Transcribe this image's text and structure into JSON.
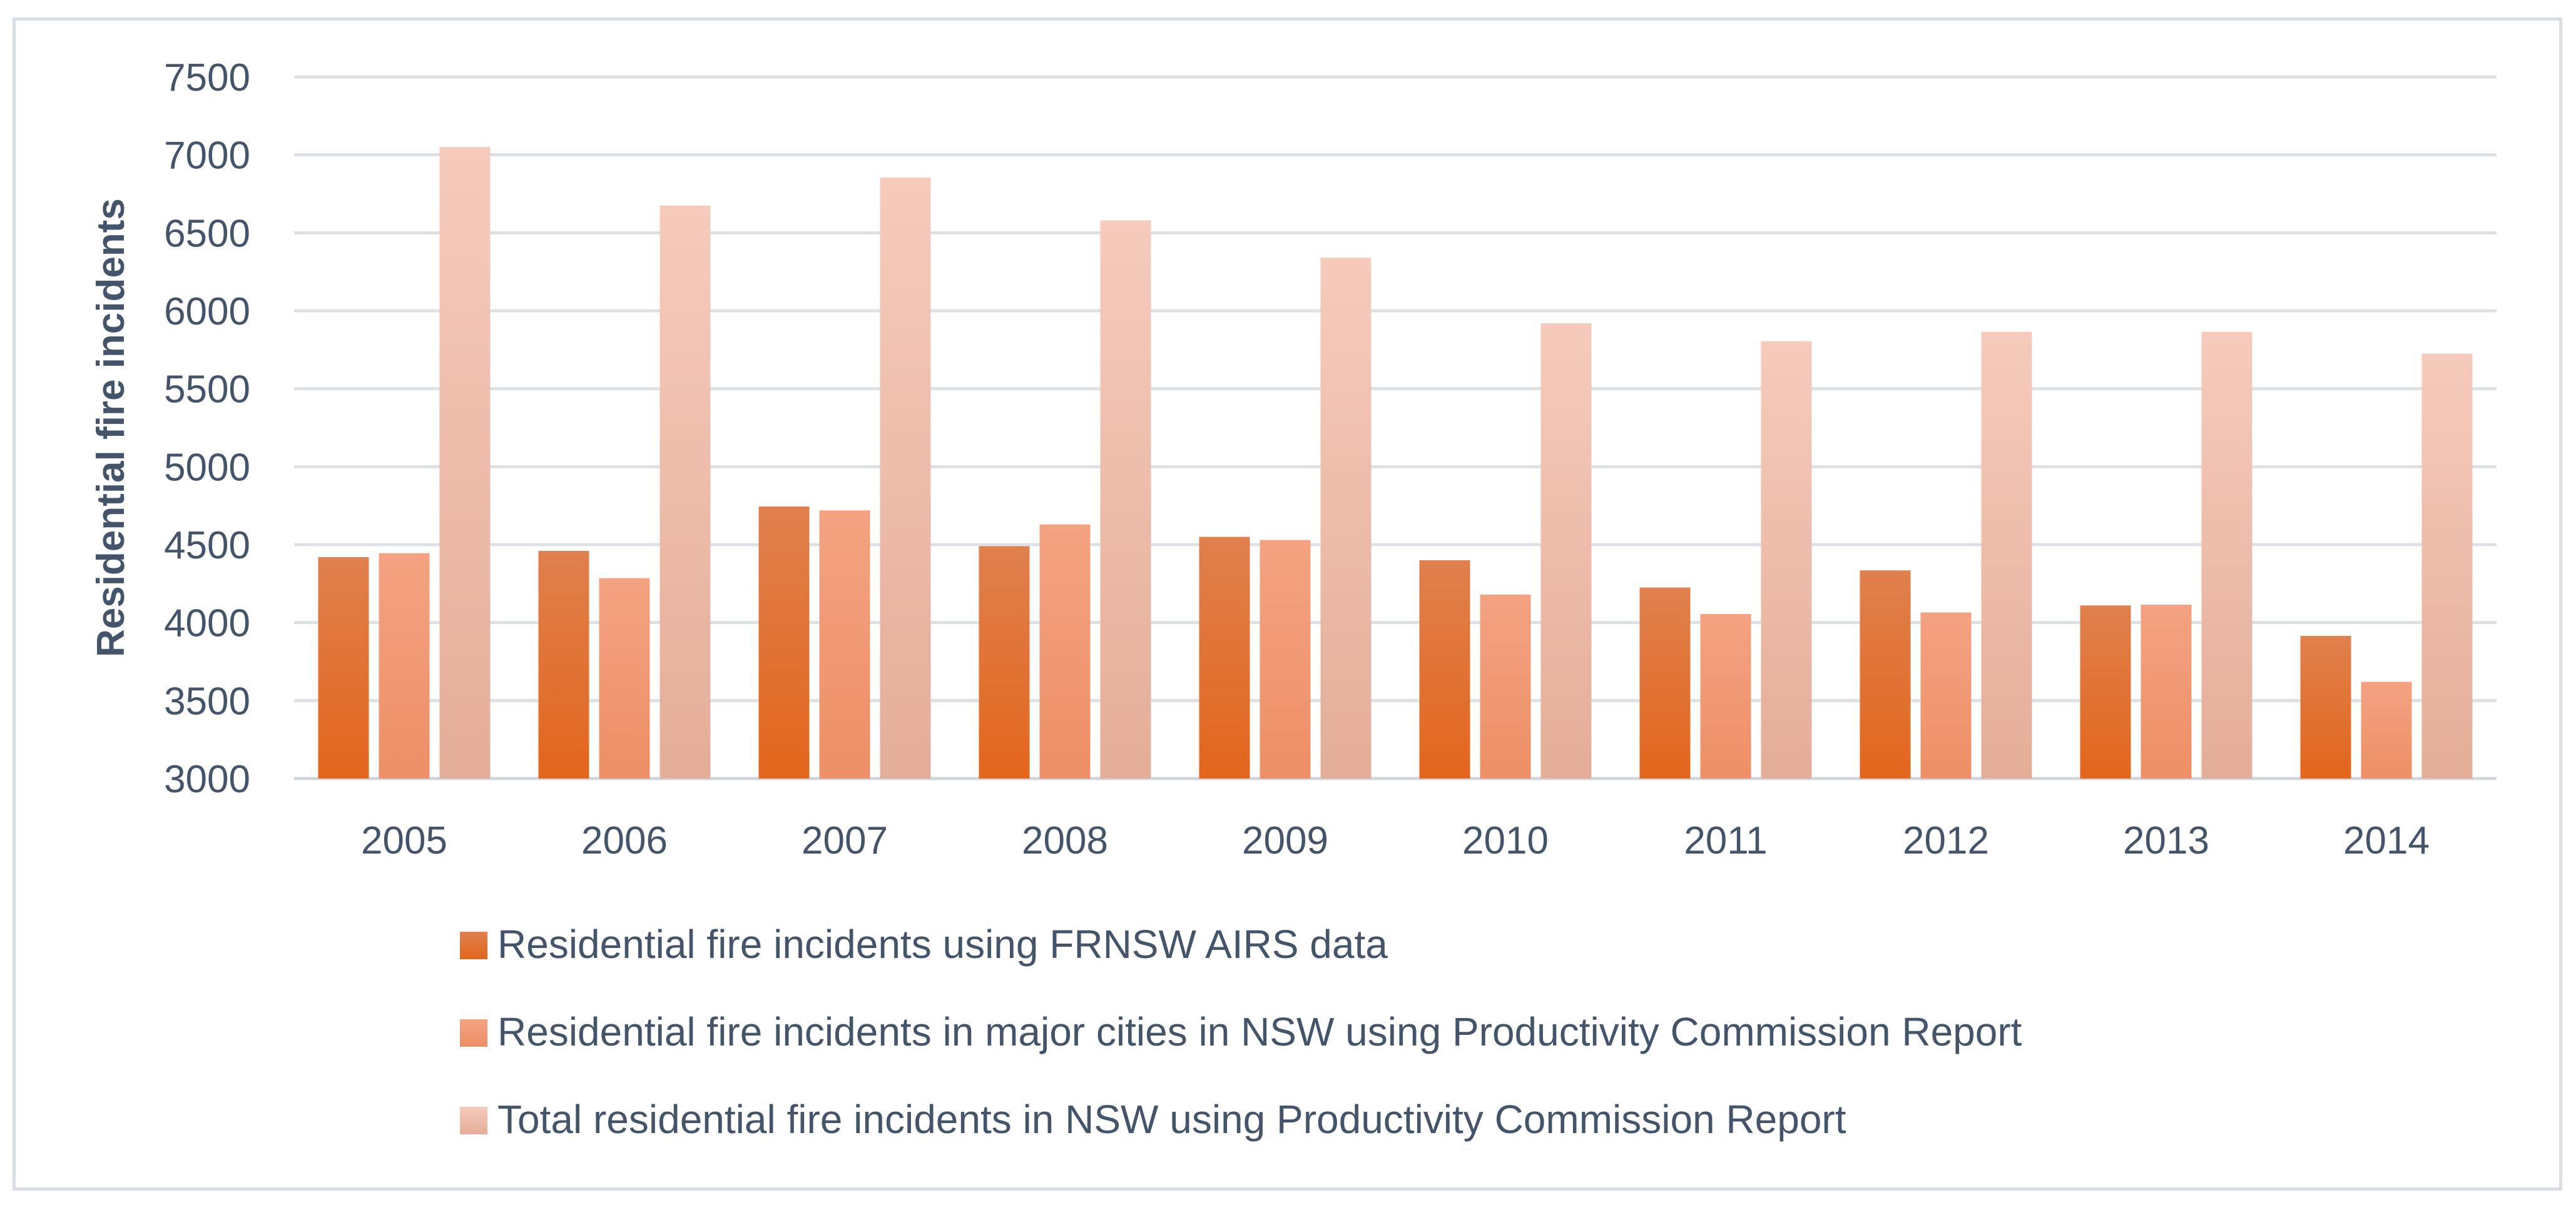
{
  "chart_data": {
    "type": "bar",
    "title": "",
    "xlabel": "",
    "ylabel": "Residential fire incidents",
    "ylim": [
      3000,
      7500
    ],
    "yticks": [
      3000,
      3500,
      4000,
      4500,
      5000,
      5500,
      6000,
      6500,
      7000,
      7500
    ],
    "grid": true,
    "legend_position": "bottom",
    "categories": [
      "2005",
      "2006",
      "2007",
      "2008",
      "2009",
      "2010",
      "2011",
      "2012",
      "2013",
      "2014"
    ],
    "series": [
      {
        "name": "Residential fire incidents using FRNSW AIRS data",
        "color": "#e46c24",
        "values": [
          4420,
          4460,
          4745,
          4490,
          4550,
          4400,
          4225,
          4335,
          4110,
          3915
        ]
      },
      {
        "name": "Residential fire incidents in major cities in NSW using Productivity Commission Report",
        "color": "#f29a74",
        "values": [
          4445,
          4285,
          4720,
          4630,
          4530,
          4180,
          4055,
          4065,
          4115,
          3620
        ]
      },
      {
        "name": "Total residential fire incidents in NSW using Productivity Commission Report",
        "color": "#f3c3b2",
        "values": [
          7050,
          6675,
          6855,
          6580,
          6340,
          5920,
          5805,
          5865,
          5865,
          5725
        ]
      }
    ]
  }
}
